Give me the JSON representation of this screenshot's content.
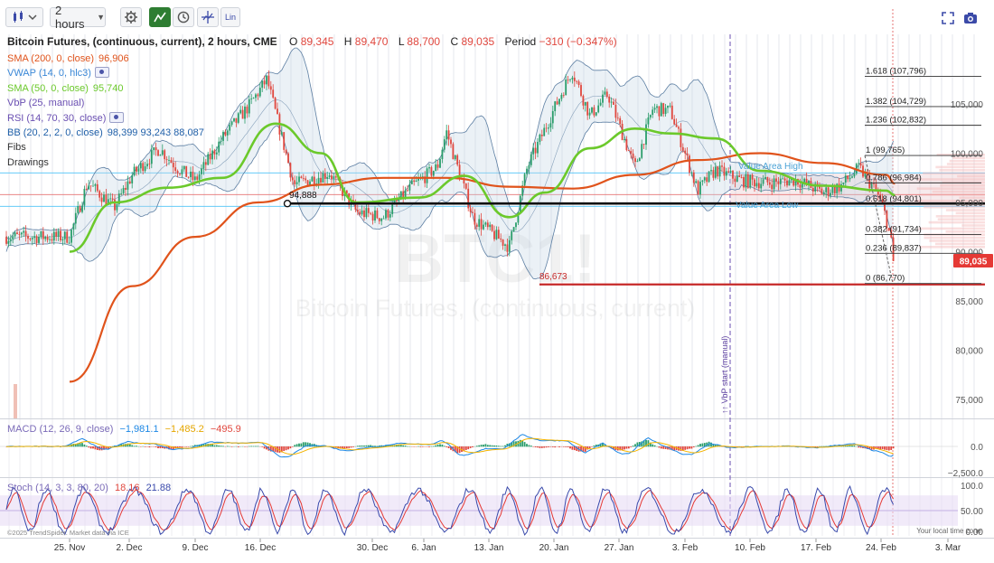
{
  "toolbar": {
    "interval": "2 hours",
    "scale_label": "Lin"
  },
  "legend": {
    "title": "Bitcoin Futures, (continuous, current), 2 hours, CME",
    "o_label": "O",
    "o": "89,345",
    "h_label": "H",
    "h": "89,470",
    "l_label": "L",
    "l": "88,700",
    "c_label": "C",
    "c": "89,035",
    "period_label": "Period",
    "period": "−310 (−0.347%)",
    "studies": [
      {
        "name": "SMA (200, 0, close)",
        "value": "96,906",
        "color": "#e0531b",
        "eye": false
      },
      {
        "name": "VWAP (14, 0, hlc3)",
        "value": "",
        "color": "#3a87d6",
        "eye": true
      },
      {
        "name": "SMA (50, 0, close)",
        "value": "95,740",
        "color": "#6bc92b",
        "eye": false
      },
      {
        "name": "VbP (25, manual)",
        "value": "",
        "color": "#6a4fb2",
        "eye": false
      },
      {
        "name": "RSI (14, 70, 30, close)",
        "value": "",
        "color": "#6a4fb2",
        "eye": true
      },
      {
        "name": "BB (20, 2, 2, 0, close)",
        "value": "98,399  93,243  88,087",
        "color": "#1f5fa8",
        "eye": false
      },
      {
        "name": "Fibs",
        "value": "",
        "color": "#333333",
        "eye": false
      },
      {
        "name": "Drawings",
        "value": "",
        "color": "#333333",
        "eye": false
      }
    ],
    "macd": {
      "name": "MACD (12, 26, 9, close)",
      "v1": "−1,981.1",
      "v2": "−1,485.2",
      "v3": "−495.9"
    },
    "stoch": {
      "name": "Stoch (14, 3, 3, 80, 20)",
      "v1": "18.16",
      "v2": "21.88"
    }
  },
  "watermark": {
    "symbol": "BTC1!",
    "name": "Bitcoin Futures, (continuous, current)"
  },
  "copyright": "©2025 TrendSpider. Market data via ICE",
  "local_time": "Your local time zone",
  "vbp_label": "↑↑ VbP start (manual)",
  "value_area_high": "Value Area High",
  "value_area_low": "Value Area Low",
  "colors": {
    "up": "#2a9d6b",
    "down": "#e0473e",
    "sma200": "#e0531b",
    "sma50": "#6bc92b",
    "bb_fill": "#c7d6e6",
    "bb_line": "#5d7fa3",
    "hline": "#111111",
    "support": "#c62828",
    "macd_line": "#1e88e5",
    "macd_signal": "#f4b400",
    "stoch_k": "#3949ab",
    "stoch_d": "#e53935",
    "stoch_band": "#e7dcf5",
    "last_price_bg": "#e53935"
  },
  "chart_data": [
    {
      "type": "candlestick",
      "title": "Bitcoin Futures, (continuous, current), 2 hours, CME",
      "x_ticks": [
        "25. Nov",
        "2. Dec",
        "9. Dec",
        "16. Dec",
        "30. Dec",
        "6. Jan",
        "13. Jan",
        "20. Jan",
        "27. Jan",
        "3. Feb",
        "10. Feb",
        "17. Feb",
        "24. Feb",
        "3. Mar"
      ],
      "y_ticks": [
        "105,000",
        "100,000",
        "95,000",
        "90,000",
        "85,000",
        "80,000",
        "75,000"
      ],
      "ylim": [
        72000,
        111000
      ],
      "last_price": "89,035",
      "price_path": [
        [
          "25. Nov",
          91500
        ],
        [
          "27. Nov",
          97000
        ],
        [
          "30. Nov",
          94500
        ],
        [
          "2. Dec",
          97800
        ],
        [
          "5. Dec",
          100500
        ],
        [
          "7. Dec",
          98500
        ],
        [
          "9. Dec",
          97200
        ],
        [
          "12. Dec",
          101500
        ],
        [
          "15. Dec",
          104800
        ],
        [
          "17. Dec",
          107500
        ],
        [
          "20. Dec",
          96800
        ],
        [
          "24. Dec",
          98000
        ],
        [
          "27. Dec",
          94000
        ],
        [
          "30. Dec",
          93500
        ],
        [
          "2. Jan",
          96500
        ],
        [
          "5. Jan",
          98600
        ],
        [
          "6. Jan",
          102200
        ],
        [
          "9. Jan",
          93400
        ],
        [
          "13. Jan",
          90500
        ],
        [
          "15. Jan",
          98500
        ],
        [
          "17. Jan",
          102500
        ],
        [
          "20. Jan",
          108400
        ],
        [
          "22. Jan",
          103800
        ],
        [
          "24. Jan",
          106000
        ],
        [
          "27. Jan",
          98500
        ],
        [
          "29. Jan",
          104500
        ],
        [
          "31. Jan",
          104300
        ],
        [
          "3. Feb",
          96200
        ],
        [
          "5. Feb",
          98300
        ],
        [
          "8. Feb",
          97200
        ],
        [
          "11. Feb",
          97000
        ],
        [
          "14. Feb",
          97300
        ],
        [
          "17. Feb",
          96000
        ],
        [
          "19. Feb",
          96700
        ],
        [
          "21. Feb",
          98500
        ],
        [
          "23. Feb",
          96000
        ],
        [
          "24. Feb",
          93500
        ],
        [
          "25. Feb",
          89035
        ]
      ],
      "series": [
        {
          "name": "SMA (200, 0, close)",
          "last": 96906,
          "path": [
            [
              "25. Nov",
              76800
            ],
            [
              "2. Dec",
              86500
            ],
            [
              "9. Dec",
              91500
            ],
            [
              "16. Dec",
              95000
            ],
            [
              "23. Dec",
              96800
            ],
            [
              "30. Dec",
              97500
            ],
            [
              "6. Jan",
              97500
            ],
            [
              "13. Jan",
              96600
            ],
            [
              "20. Jan",
              96400
            ],
            [
              "27. Jan",
              97800
            ],
            [
              "3. Feb",
              99300
            ],
            [
              "10. Feb",
              100000
            ],
            [
              "17. Feb",
              99000
            ],
            [
              "24. Feb",
              97800
            ],
            [
              "25. Feb",
              96906
            ]
          ]
        },
        {
          "name": "SMA (50, 0, close)",
          "last": 95740,
          "path": [
            [
              "25. Nov",
              90000
            ],
            [
              "30. Nov",
              95000
            ],
            [
              "6. Dec",
              96500
            ],
            [
              "12. Dec",
              97500
            ],
            [
              "18. Dec",
              103000
            ],
            [
              "23. Dec",
              100000
            ],
            [
              "27. Dec",
              95000
            ],
            [
              "3. Jan",
              95500
            ],
            [
              "8. Jan",
              97700
            ],
            [
              "13. Jan",
              93500
            ],
            [
              "17. Jan",
              96000
            ],
            [
              "22. Jan",
              100500
            ],
            [
              "27. Jan",
              102500
            ],
            [
              "31. Jan",
              102000
            ],
            [
              "5. Feb",
              101500
            ],
            [
              "10. Feb",
              98200
            ],
            [
              "17. Feb",
              96700
            ],
            [
              "24. Feb",
              96200
            ],
            [
              "25. Feb",
              95740
            ]
          ]
        }
      ],
      "fib_levels": [
        {
          "ratio": "1.618",
          "value": "107,796"
        },
        {
          "ratio": "1.382",
          "value": "104,729"
        },
        {
          "ratio": "1.236",
          "value": "102,832"
        },
        {
          "ratio": "1",
          "value": "99,765"
        },
        {
          "ratio": "0.786",
          "value": "96,984"
        },
        {
          "ratio": "0.618",
          "value": "94,801"
        },
        {
          "ratio": "0.382",
          "value": "91,734"
        },
        {
          "ratio": "0.236",
          "value": "89,837"
        },
        {
          "ratio": "0",
          "value": "86,770"
        }
      ],
      "horizontal_lines": [
        {
          "label": "94,888",
          "value": 94888
        },
        {
          "label": "86,673",
          "value": 86673
        }
      ],
      "volume_profile": {
        "value_area_high": 98000,
        "value_area_low": 94600
      }
    },
    {
      "type": "line",
      "title": "MACD (12, 26, 9, close)",
      "y_ticks": [
        "0.0",
        "−2,500.0"
      ],
      "series": [
        {
          "name": "MACD",
          "last": -1981.1
        },
        {
          "name": "Signal",
          "last": -1485.2
        },
        {
          "name": "Histogram",
          "last": -495.9
        }
      ]
    },
    {
      "type": "line",
      "title": "Stoch (14, 3, 3, 80, 20)",
      "y_ticks": [
        "100.0",
        "50.00",
        "0.00"
      ],
      "series": [
        {
          "name": "%K",
          "last": 18.16
        },
        {
          "name": "%D",
          "last": 21.88
        }
      ]
    }
  ]
}
